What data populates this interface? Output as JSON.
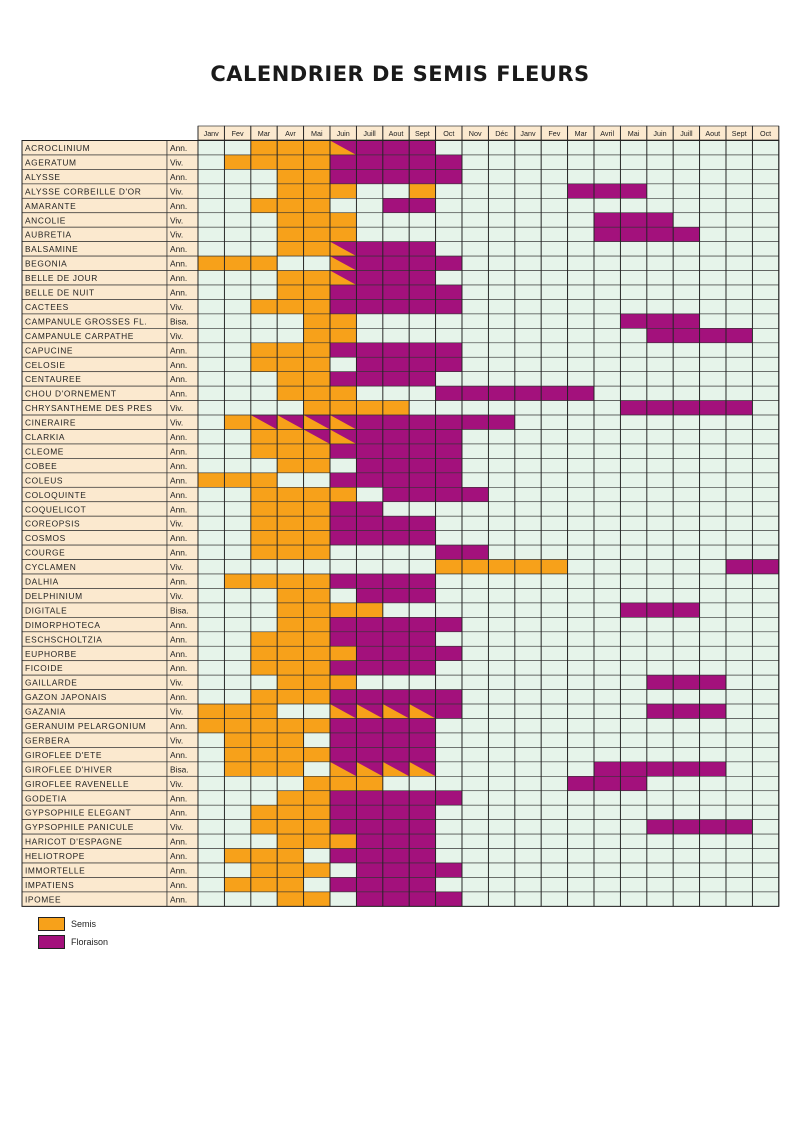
{
  "title": "CALENDRIER DE SEMIS FLEURS",
  "months": [
    "Janv",
    "Fev",
    "Mar",
    "Avr",
    "Mai",
    "Juin",
    "Juill",
    "Aout",
    "Sept",
    "Oct",
    "Nov",
    "Déc",
    "Janv",
    "Fev",
    "Mar",
    "Avril",
    "Mai",
    "Juin",
    "Juill",
    "Aout",
    "Sept",
    "Oct"
  ],
  "colors": {
    "semis": "#f7a11a",
    "floraison": "#a3117c",
    "empty": "#e6f4ea"
  },
  "legend": {
    "semis": "Semis",
    "floraison": "Floraison"
  },
  "rows": [
    {
      "name": "ACROCLINIUM",
      "type": "Ann.",
      "s": [
        3,
        4,
        5
      ],
      "f": [
        7,
        8,
        9
      ],
      "d": [
        6
      ]
    },
    {
      "name": "AGERATUM",
      "type": "Viv.",
      "s": [
        2,
        3,
        4,
        5
      ],
      "f": [
        6,
        7,
        8,
        9,
        10
      ],
      "d": []
    },
    {
      "name": "ALYSSE",
      "type": "Ann.",
      "s": [
        4,
        5
      ],
      "f": [
        6,
        7,
        8,
        9,
        10
      ],
      "d": []
    },
    {
      "name": "ALYSSE CORBEILLE D'OR",
      "type": "Viv.",
      "s": [
        4,
        5,
        6,
        9
      ],
      "f": [
        15,
        16,
        17
      ],
      "d": []
    },
    {
      "name": "AMARANTE",
      "type": "Ann.",
      "s": [
        3,
        4,
        5
      ],
      "f": [
        8,
        9
      ],
      "d": []
    },
    {
      "name": "ANCOLIE",
      "type": "Viv.",
      "s": [
        4,
        5,
        6
      ],
      "f": [
        16,
        17,
        18
      ],
      "d": []
    },
    {
      "name": "AUBRETIA",
      "type": "Viv.",
      "s": [
        4,
        5,
        6
      ],
      "f": [
        16,
        17,
        18,
        19
      ],
      "d": []
    },
    {
      "name": "BALSAMINE",
      "type": "Ann.",
      "s": [
        4,
        5
      ],
      "f": [
        7,
        8,
        9
      ],
      "d": [
        6
      ]
    },
    {
      "name": "BEGONIA",
      "type": "Ann.",
      "s": [
        1,
        2,
        3
      ],
      "f": [
        7,
        8,
        9,
        10
      ],
      "d": [
        6
      ]
    },
    {
      "name": "BELLE DE JOUR",
      "type": "Ann.",
      "s": [
        4,
        5
      ],
      "f": [
        7,
        8,
        9
      ],
      "d": [
        6
      ]
    },
    {
      "name": "BELLE DE NUIT",
      "type": "Ann.",
      "s": [
        4,
        5
      ],
      "f": [
        6,
        7,
        8,
        9,
        10
      ],
      "d": []
    },
    {
      "name": "CACTEES",
      "type": "Viv.",
      "s": [
        3,
        4,
        5
      ],
      "f": [
        6,
        7,
        8,
        9,
        10
      ],
      "d": []
    },
    {
      "name": "CAMPANULE GROSSES FL.",
      "type": "Bisa.",
      "s": [
        5,
        6
      ],
      "f": [
        17,
        18,
        19
      ],
      "d": []
    },
    {
      "name": "CAMPANULE CARPATHE",
      "type": "Viv.",
      "s": [
        5,
        6
      ],
      "f": [
        18,
        19,
        20,
        21
      ],
      "d": []
    },
    {
      "name": "CAPUCINE",
      "type": "Ann.",
      "s": [
        3,
        4,
        5
      ],
      "f": [
        6,
        7,
        8,
        9,
        10
      ],
      "d": []
    },
    {
      "name": "CELOSIE",
      "type": "Ann.",
      "s": [
        3,
        4,
        5
      ],
      "f": [
        7,
        8,
        9,
        10
      ],
      "d": []
    },
    {
      "name": "CENTAUREE",
      "type": "Ann.",
      "s": [
        4,
        5
      ],
      "f": [
        6,
        7,
        8,
        9
      ],
      "d": []
    },
    {
      "name": "CHOU D'ORNEMENT",
      "type": "Ann.",
      "s": [
        4,
        5,
        6
      ],
      "f": [
        10,
        11,
        12,
        13,
        14,
        15
      ],
      "d": []
    },
    {
      "name": "CHRYSANTHEME DES PRES",
      "type": "Viv.",
      "s": [
        5,
        6,
        7,
        8
      ],
      "f": [
        17,
        18,
        19,
        20,
        21
      ],
      "d": []
    },
    {
      "name": "CINERAIRE",
      "type": "Viv.",
      "s": [
        2
      ],
      "f": [
        7,
        8,
        9,
        10,
        11,
        12
      ],
      "d": [
        3,
        4,
        5,
        6
      ]
    },
    {
      "name": "CLARKIA",
      "type": "Ann.",
      "s": [
        3,
        4
      ],
      "f": [
        7,
        8,
        9,
        10
      ],
      "d": [
        5,
        6
      ]
    },
    {
      "name": "CLEOME",
      "type": "Ann.",
      "s": [
        3,
        4,
        5
      ],
      "f": [
        6,
        7,
        8,
        9,
        10
      ],
      "d": []
    },
    {
      "name": "COBEE",
      "type": "Ann.",
      "s": [
        4,
        5
      ],
      "f": [
        7,
        8,
        9,
        10
      ],
      "d": []
    },
    {
      "name": "COLEUS",
      "type": "Ann.",
      "s": [
        1,
        2,
        3
      ],
      "f": [
        6,
        7,
        8,
        9,
        10
      ],
      "d": []
    },
    {
      "name": "COLOQUINTE",
      "type": "Ann.",
      "s": [
        3,
        4,
        5,
        6
      ],
      "f": [
        8,
        9,
        10,
        11
      ],
      "d": []
    },
    {
      "name": "COQUELICOT",
      "type": "Ann.",
      "s": [
        3,
        4,
        5
      ],
      "f": [
        6,
        7
      ],
      "d": []
    },
    {
      "name": "COREOPSIS",
      "type": "Viv.",
      "s": [
        3,
        4,
        5
      ],
      "f": [
        6,
        7,
        8,
        9
      ],
      "d": []
    },
    {
      "name": "COSMOS",
      "type": "Ann.",
      "s": [
        3,
        4,
        5
      ],
      "f": [
        6,
        7,
        8,
        9
      ],
      "d": []
    },
    {
      "name": "COURGE",
      "type": "Ann.",
      "s": [
        3,
        4,
        5
      ],
      "f": [
        10,
        11
      ],
      "d": []
    },
    {
      "name": "CYCLAMEN",
      "type": "Viv.",
      "s": [
        10,
        11,
        12,
        13,
        14
      ],
      "f": [
        21,
        22
      ],
      "d": []
    },
    {
      "name": "DALHIA",
      "type": "Ann.",
      "s": [
        2,
        3,
        4,
        5
      ],
      "f": [
        6,
        7,
        8,
        9
      ],
      "d": []
    },
    {
      "name": "DELPHINIUM",
      "type": "Viv.",
      "s": [
        4,
        5
      ],
      "f": [
        7,
        8,
        9
      ],
      "d": []
    },
    {
      "name": "DIGITALE",
      "type": "Bisa.",
      "s": [
        4,
        5,
        6,
        7
      ],
      "f": [
        17,
        18,
        19
      ],
      "d": []
    },
    {
      "name": "DIMORPHOTECA",
      "type": "Ann.",
      "s": [
        4,
        5
      ],
      "f": [
        6,
        7,
        8,
        9,
        10
      ],
      "d": []
    },
    {
      "name": "ESCHSCHOLTZIA",
      "type": "Ann.",
      "s": [
        3,
        4,
        5
      ],
      "f": [
        6,
        7,
        8,
        9
      ],
      "d": []
    },
    {
      "name": "EUPHORBE",
      "type": "Ann.",
      "s": [
        3,
        4,
        5,
        6
      ],
      "f": [
        7,
        8,
        9,
        10
      ],
      "d": []
    },
    {
      "name": "FICOIDE",
      "type": "Ann.",
      "s": [
        3,
        4,
        5
      ],
      "f": [
        6,
        7,
        8,
        9
      ],
      "d": []
    },
    {
      "name": "GAILLARDE",
      "type": "Viv.",
      "s": [
        4,
        5,
        6
      ],
      "f": [
        18,
        19,
        20
      ],
      "d": []
    },
    {
      "name": "GAZON JAPONAIS",
      "type": "Ann.",
      "s": [
        3,
        4,
        5
      ],
      "f": [
        6,
        7,
        8,
        9,
        10
      ],
      "d": []
    },
    {
      "name": "GAZANIA",
      "type": "Viv.",
      "s": [
        1,
        2,
        3
      ],
      "f": [
        10,
        18,
        19,
        20
      ],
      "d": [
        6,
        7,
        8,
        9
      ]
    },
    {
      "name": "GERANUIM PELARGONIUM",
      "type": "Ann.",
      "s": [
        1,
        2,
        3,
        4,
        5
      ],
      "f": [
        6,
        7,
        8,
        9
      ],
      "d": []
    },
    {
      "name": "GERBERA",
      "type": "Viv.",
      "s": [
        2,
        3,
        4
      ],
      "f": [
        6,
        7,
        8,
        9
      ],
      "d": []
    },
    {
      "name": "GIROFLEE D'ETE",
      "type": "Ann.",
      "s": [
        2,
        3,
        4,
        5
      ],
      "f": [
        6,
        7,
        8,
        9
      ],
      "d": []
    },
    {
      "name": "GIROFLEE D'HIVER",
      "type": "Bisa.",
      "s": [
        2,
        3,
        4
      ],
      "f": [
        16,
        17,
        18,
        19,
        20
      ],
      "d": [
        6,
        7,
        8,
        9
      ]
    },
    {
      "name": "GIROFLEE RAVENELLE",
      "type": "Viv.",
      "s": [
        5,
        6,
        7
      ],
      "f": [
        15,
        16,
        17
      ],
      "d": []
    },
    {
      "name": "GODETIA",
      "type": "Ann.",
      "s": [
        4,
        5
      ],
      "f": [
        6,
        7,
        8,
        9,
        10
      ],
      "d": []
    },
    {
      "name": "GYPSOPHILE ELEGANT",
      "type": "Ann.",
      "s": [
        3,
        4,
        5
      ],
      "f": [
        6,
        7,
        8,
        9
      ],
      "d": []
    },
    {
      "name": "GYPSOPHILE PANICULE",
      "type": "Viv.",
      "s": [
        3,
        4,
        5
      ],
      "f": [
        6,
        7,
        8,
        9,
        18,
        19,
        20,
        21
      ],
      "d": []
    },
    {
      "name": "HARICOT D'ESPAGNE",
      "type": "Ann.",
      "s": [
        4,
        5,
        6
      ],
      "f": [
        7,
        8,
        9
      ],
      "d": []
    },
    {
      "name": "HELIOTROPE",
      "type": "Ann.",
      "s": [
        2,
        3,
        4
      ],
      "f": [
        6,
        7,
        8,
        9
      ],
      "d": []
    },
    {
      "name": "IMMORTELLE",
      "type": "Ann.",
      "s": [
        3,
        4,
        5
      ],
      "f": [
        7,
        8,
        9,
        10
      ],
      "d": []
    },
    {
      "name": "IMPATIENS",
      "type": "Ann.",
      "s": [
        2,
        3,
        4
      ],
      "f": [
        6,
        7,
        8,
        9
      ],
      "d": []
    },
    {
      "name": "IPOMEE",
      "type": "Ann.",
      "s": [
        4,
        5
      ],
      "f": [
        7,
        8,
        9,
        10
      ],
      "d": []
    }
  ]
}
